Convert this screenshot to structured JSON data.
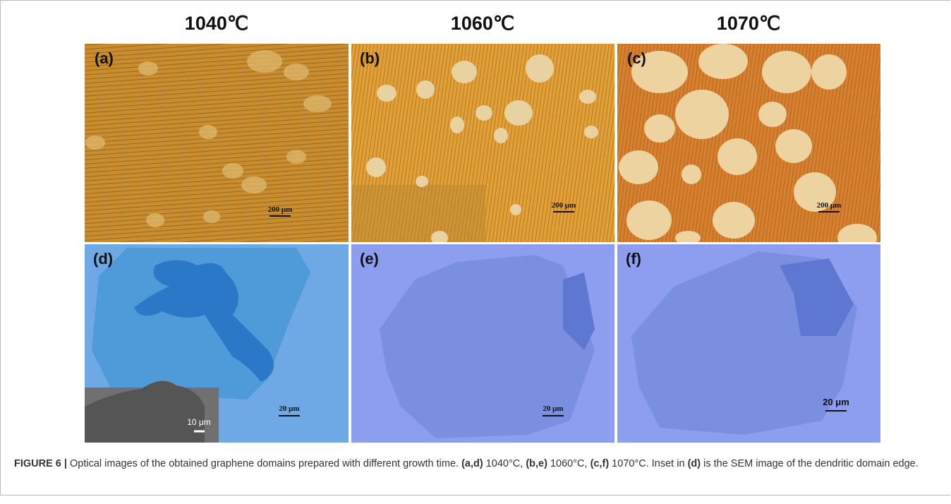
{
  "figure": {
    "column_headers": [
      "1040℃",
      "1060℃",
      "1070℃"
    ],
    "panels": [
      {
        "label": "(a)",
        "scale_bar": "200 μm"
      },
      {
        "label": "(b)",
        "scale_bar": "200 μm"
      },
      {
        "label": "(c)",
        "scale_bar": "200 μm"
      },
      {
        "label": "(d)",
        "scale_bar": "20 μm"
      },
      {
        "label": "(e)",
        "scale_bar": "20 μm"
      },
      {
        "label": "(f)",
        "scale_bar": "20 μm"
      }
    ],
    "inset_scale_bar": "10 μm",
    "caption": {
      "segments": [
        {
          "text": "FIGURE 6 |",
          "bold": true
        },
        {
          "text": " Optical images of the obtained graphene domains prepared with different growth time. ",
          "bold": false
        },
        {
          "text": "(a,d)",
          "bold": true
        },
        {
          "text": " 1040°C, ",
          "bold": false
        },
        {
          "text": "(b,e)",
          "bold": true
        },
        {
          "text": " 1060°C, ",
          "bold": false
        },
        {
          "text": "(c,f)",
          "bold": true
        },
        {
          "text": " 1070°C. Inset in ",
          "bold": false
        },
        {
          "text": "(d)",
          "bold": true
        },
        {
          "text": " is the SEM image of the dendritic domain edge.",
          "bold": false
        }
      ]
    }
  }
}
